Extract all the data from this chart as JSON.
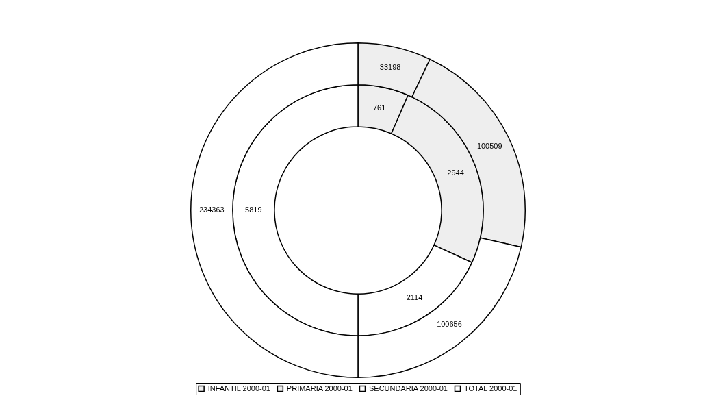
{
  "chart_data": {
    "type": "donut",
    "categories": [
      "INFANTIL 2000-01",
      "PRIMARIA 2000-01",
      "SECUNDARIA 2000-01",
      "TOTAL 2000-01"
    ],
    "colors": [
      "#eeeeee",
      "#eeeeee",
      "#ffffff",
      "#ffffff"
    ],
    "series": [
      {
        "values": [
          33198,
          100509,
          100656,
          234363
        ]
      },
      {
        "values": [
          761,
          2944,
          2114,
          5819
        ]
      }
    ],
    "data_labels": true,
    "legend": "bottom"
  }
}
